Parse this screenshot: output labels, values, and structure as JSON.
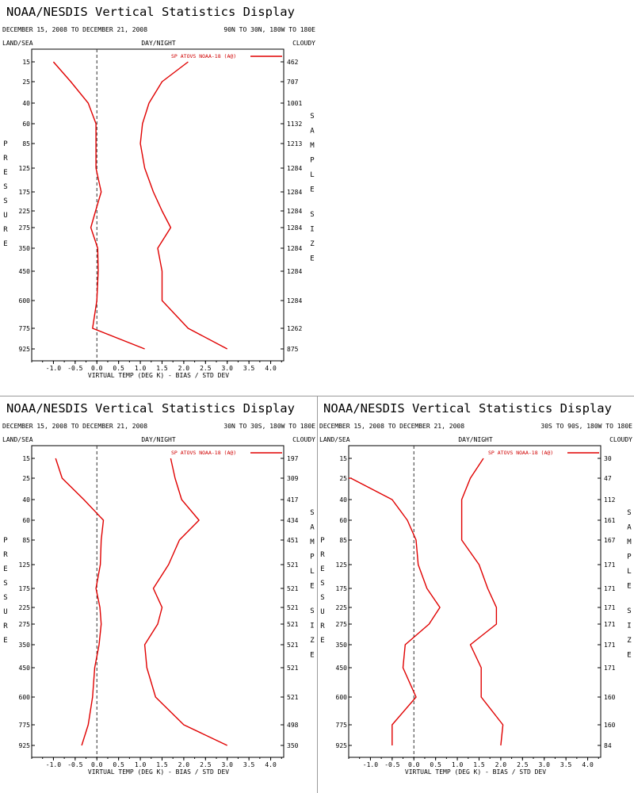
{
  "chart_data": [
    {
      "type": "line",
      "title": "NOAA/NESDIS Vertical Statistics Display",
      "date_range": "DECEMBER 15, 2008 TO DECEMBER 21, 2008",
      "region": "90N TO 30N, 180W TO 180E",
      "land_sea": "LAND/SEA",
      "day_night": "DAY/NIGHT",
      "cloudy": "CLOUDY",
      "legend": "SP ATOVS NOAA-18 (A@)",
      "xlabel": "VIRTUAL TEMP (DEG K) - BIAS / STD DEV",
      "ylabel": "PRESSURE",
      "sample_size_label": "SAMPLE SIZE",
      "xlim": [
        -1.5,
        4.3
      ],
      "x_ticks": [
        "-1.0",
        "-0.5",
        "0.0",
        "0.5",
        "1.0",
        "1.5",
        "2.0",
        "2.5",
        "3.0",
        "3.5",
        "4.0"
      ],
      "pressure_levels": [
        "15",
        "25",
        "40",
        "60",
        "85",
        "125",
        "175",
        "225",
        "275",
        "350",
        "450",
        "600",
        "775",
        "925"
      ],
      "sample_size": [
        "462",
        "707",
        "1001",
        "1132",
        "1213",
        "1284",
        "1284",
        "1284",
        "1284",
        "1284",
        "1284",
        "1284",
        "1262",
        "875"
      ],
      "series": [
        {
          "kind": "bias",
          "values": [
            -1.0,
            -0.6,
            -0.2,
            -0.02,
            -0.02,
            -0.02,
            0.1,
            -0.03,
            -0.14,
            0.02,
            0.03,
            0.0,
            -0.1,
            1.1
          ]
        },
        {
          "kind": "std_dev",
          "values": [
            2.1,
            1.5,
            1.2,
            1.05,
            1.0,
            1.1,
            1.3,
            1.5,
            1.7,
            1.4,
            1.5,
            1.5,
            2.1,
            3.0
          ]
        }
      ]
    },
    {
      "type": "line",
      "title": "NOAA/NESDIS Vertical Statistics Display",
      "date_range": "DECEMBER 15, 2008 TO DECEMBER 21, 2008",
      "region": "30N TO 30S, 180W TO 180E",
      "land_sea": "LAND/SEA",
      "day_night": "DAY/NIGHT",
      "cloudy": "CLOUDY",
      "legend": "SP ATOVS NOAA-18 (A@)",
      "xlabel": "VIRTUAL TEMP (DEG K) - BIAS / STD DEV",
      "ylabel": "PRESSURE",
      "sample_size_label": "SAMPLE SIZE",
      "xlim": [
        -1.5,
        4.3
      ],
      "x_ticks": [
        "-1.0",
        "-0.5",
        "0.0",
        "0.5",
        "1.0",
        "1.5",
        "2.0",
        "2.5",
        "3.0",
        "3.5",
        "4.0"
      ],
      "pressure_levels": [
        "15",
        "25",
        "40",
        "60",
        "85",
        "125",
        "175",
        "225",
        "275",
        "350",
        "450",
        "600",
        "775",
        "925"
      ],
      "sample_size": [
        "197",
        "309",
        "417",
        "434",
        "451",
        "521",
        "521",
        "521",
        "521",
        "521",
        "521",
        "521",
        "498",
        "350"
      ],
      "series": [
        {
          "kind": "bias",
          "values": [
            -0.95,
            -0.8,
            -0.3,
            0.15,
            0.1,
            0.08,
            -0.02,
            0.07,
            0.1,
            0.05,
            -0.05,
            -0.1,
            -0.2,
            -0.35
          ]
        },
        {
          "kind": "std_dev",
          "values": [
            1.7,
            1.8,
            1.95,
            2.35,
            1.9,
            1.65,
            1.3,
            1.5,
            1.4,
            1.1,
            1.15,
            1.35,
            2.0,
            3.0
          ]
        }
      ]
    },
    {
      "type": "line",
      "title": "NOAA/NESDIS Vertical Statistics Display",
      "date_range": "DECEMBER 15, 2008 TO DECEMBER 21, 2008",
      "region": "30S TO 90S, 180W TO 180E",
      "land_sea": "LAND/SEA",
      "day_night": "DAY/NIGHT",
      "cloudy": "CLOUDY",
      "legend": "SP ATOVS NOAA-18 (A@)",
      "xlabel": "VIRTUAL TEMP (DEG K) - BIAS / STD DEV",
      "ylabel": "PRESSURE",
      "sample_size_label": "SAMPLE SIZE",
      "xlim": [
        -1.5,
        4.3
      ],
      "x_ticks": [
        "-1.0",
        "-0.5",
        "0.0",
        "0.5",
        "1.0",
        "1.5",
        "2.0",
        "2.5",
        "3.0",
        "3.5",
        "4.0"
      ],
      "pressure_levels": [
        "15",
        "25",
        "40",
        "60",
        "85",
        "125",
        "175",
        "225",
        "275",
        "350",
        "450",
        "600",
        "775",
        "925"
      ],
      "sample_size": [
        "30",
        "47",
        "112",
        "161",
        "167",
        "171",
        "171",
        "171",
        "171",
        "171",
        "171",
        "160",
        "160",
        "84"
      ],
      "series": [
        {
          "kind": "bias",
          "values": [
            null,
            -1.45,
            -0.5,
            -0.15,
            0.05,
            0.1,
            0.3,
            0.6,
            0.35,
            -0.2,
            -0.25,
            0.05,
            -0.5,
            -0.5
          ]
        },
        {
          "kind": "std_dev",
          "values": [
            1.6,
            1.3,
            1.1,
            1.1,
            1.1,
            1.5,
            1.7,
            1.9,
            1.9,
            1.3,
            1.55,
            1.55,
            2.05,
            2.0
          ]
        }
      ]
    }
  ]
}
